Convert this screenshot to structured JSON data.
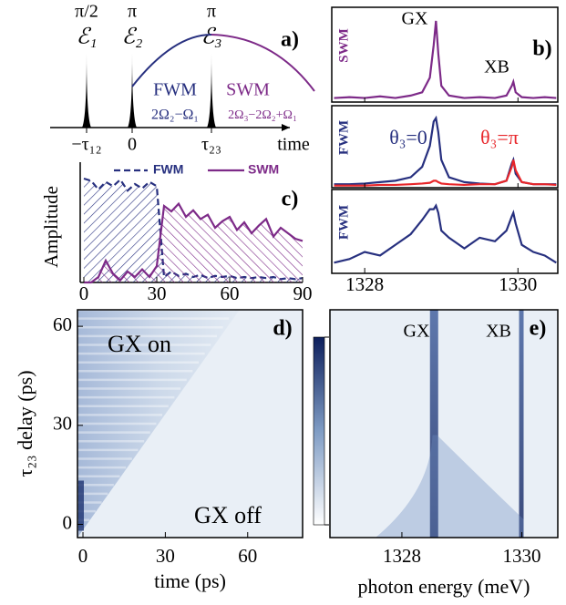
{
  "chart_data": [
    {
      "type": "diagram",
      "label": "a)",
      "pulses": [
        {
          "area": "π/2",
          "name": "ℰ₁",
          "time": "−τ₁₂"
        },
        {
          "area": "π",
          "name": "ℰ₂",
          "time": "0"
        },
        {
          "area": "π",
          "name": "ℰ₃",
          "time": "τ₂₃"
        }
      ],
      "signals": [
        {
          "name": "FWM",
          "formula": "2Ω₂−Ω₁",
          "color": "#27307f"
        },
        {
          "name": "SWM",
          "formula": "2Ω₃−2Ω₂+Ω₁",
          "color": "#7d2a88"
        }
      ],
      "xlabel": "time"
    },
    {
      "type": "line",
      "label": "b)",
      "ylabel": "SWM",
      "ylabel_color": "#7d2a88",
      "annotations": [
        "GX",
        "XB"
      ],
      "x": [
        1327.6,
        1327.8,
        1328.0,
        1328.2,
        1328.4,
        1328.6,
        1328.75,
        1328.85,
        1328.9,
        1328.93,
        1328.96,
        1329.0,
        1329.1,
        1329.3,
        1329.5,
        1329.7,
        1329.85,
        1329.92,
        1329.94,
        1329.97,
        1330.05,
        1330.2,
        1330.35,
        1330.5
      ],
      "xlim": [
        1327.57,
        1330.52
      ],
      "ylim": [
        0,
        1.1
      ],
      "series": [
        {
          "color": "#7d2a88",
          "values": [
            0.05,
            0.06,
            0.05,
            0.07,
            0.05,
            0.08,
            0.12,
            0.3,
            0.7,
            1.0,
            0.6,
            0.2,
            0.08,
            0.05,
            0.06,
            0.05,
            0.08,
            0.2,
            0.25,
            0.12,
            0.06,
            0.05,
            0.06,
            0.05
          ]
        }
      ]
    },
    {
      "type": "line",
      "ylabel": "FWM",
      "ylabel_color": "#27307f",
      "x": [
        1327.6,
        1327.8,
        1328.0,
        1328.2,
        1328.4,
        1328.6,
        1328.75,
        1328.85,
        1328.9,
        1328.93,
        1328.96,
        1329.0,
        1329.1,
        1329.3,
        1329.5,
        1329.7,
        1329.85,
        1329.92,
        1329.94,
        1329.97,
        1330.05,
        1330.2,
        1330.35,
        1330.5
      ],
      "xlim": [
        1327.57,
        1330.52
      ],
      "ylim": [
        0,
        1.1
      ],
      "series": [
        {
          "name": "θ₃=0",
          "color": "#27307f",
          "values": [
            0.05,
            0.05,
            0.06,
            0.08,
            0.1,
            0.15,
            0.3,
            0.6,
            0.95,
            1.0,
            0.8,
            0.4,
            0.15,
            0.08,
            0.06,
            0.05,
            0.1,
            0.35,
            0.4,
            0.2,
            0.08,
            0.05,
            0.05,
            0.05
          ]
        },
        {
          "name": "θ₃=π",
          "color": "#e8262a",
          "values": [
            0.03,
            0.03,
            0.03,
            0.04,
            0.04,
            0.05,
            0.06,
            0.07,
            0.1,
            0.1,
            0.08,
            0.06,
            0.05,
            0.04,
            0.05,
            0.05,
            0.1,
            0.3,
            0.4,
            0.25,
            0.08,
            0.05,
            0.05,
            0.04
          ]
        }
      ]
    },
    {
      "type": "line",
      "ylabel": "FWM",
      "ylabel_color": "#27307f",
      "x": [
        1327.6,
        1327.8,
        1328.0,
        1328.2,
        1328.4,
        1328.6,
        1328.75,
        1328.85,
        1328.9,
        1328.93,
        1328.96,
        1329.0,
        1329.1,
        1329.3,
        1329.5,
        1329.7,
        1329.85,
        1329.92,
        1329.94,
        1329.97,
        1330.05,
        1330.2,
        1330.35,
        1330.5
      ],
      "xlim": [
        1327.57,
        1330.52
      ],
      "ylim": [
        0,
        1.1
      ],
      "xticks": [
        1328,
        1330
      ],
      "series": [
        {
          "color": "#27307f",
          "values": [
            0.15,
            0.2,
            0.3,
            0.25,
            0.4,
            0.55,
            0.75,
            0.9,
            0.9,
            0.95,
            0.85,
            0.6,
            0.5,
            0.35,
            0.5,
            0.45,
            0.6,
            0.8,
            0.85,
            0.7,
            0.4,
            0.3,
            0.25,
            0.15
          ]
        }
      ]
    },
    {
      "type": "area",
      "label": "c)",
      "ylabel": "Amplitude",
      "x": [
        0,
        3,
        6,
        9,
        12,
        15,
        18,
        21,
        24,
        27,
        30,
        33,
        36,
        39,
        42,
        45,
        48,
        51,
        54,
        57,
        60,
        63,
        66,
        69,
        72,
        75,
        78,
        81,
        84,
        87,
        90
      ],
      "xlim": [
        -1.5,
        90
      ],
      "ylim": [
        0,
        1.05
      ],
      "xticks": [
        0,
        30,
        60,
        90
      ],
      "series": [
        {
          "name": "FWM",
          "color": "#27307f",
          "dashed": true,
          "values": [
            0.95,
            0.93,
            0.85,
            0.92,
            0.88,
            0.94,
            0.84,
            0.9,
            0.86,
            0.92,
            0.88,
            0.05,
            0.1,
            0.06,
            0.08,
            0.05,
            0.07,
            0.04,
            0.06,
            0.05,
            0.06,
            0.04,
            0.05,
            0.04,
            0.05,
            0.04,
            0.05,
            0.03,
            0.04,
            0.03,
            0.04
          ]
        },
        {
          "name": "SWM",
          "color": "#7d2a88",
          "values": [
            0,
            0,
            0.05,
            0.2,
            0.08,
            0.02,
            0.1,
            0.05,
            0.12,
            0.05,
            0.15,
            0.7,
            0.65,
            0.72,
            0.6,
            0.66,
            0.58,
            0.62,
            0.5,
            0.56,
            0.6,
            0.48,
            0.55,
            0.45,
            0.52,
            0.58,
            0.42,
            0.5,
            0.45,
            0.4,
            0.38
          ]
        }
      ]
    },
    {
      "type": "heatmap",
      "label": "d)",
      "xlabel": "time (ps)",
      "ylabel": "τ₂₃ delay (ps)",
      "annotations": [
        "GX on",
        "GX off"
      ],
      "xlim": [
        -2,
        80
      ],
      "ylim": [
        -4,
        65
      ],
      "xticks": [
        0,
        30,
        60
      ],
      "yticks": [
        0,
        30,
        60
      ],
      "colorbar": {
        "ticks": [
          0,
          1
        ],
        "color": "#0d1f5c"
      }
    },
    {
      "type": "heatmap",
      "label": "e)",
      "xlabel": "photon energy (meV)",
      "annotations": [
        "GX",
        "XB"
      ],
      "xlim": [
        1326.8,
        1330.6
      ],
      "ylim": [
        -4,
        65
      ],
      "xticks": [
        1328,
        1330
      ]
    }
  ]
}
